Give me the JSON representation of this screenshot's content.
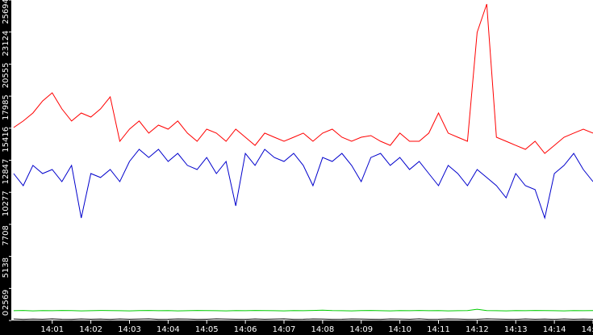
{
  "chart_data": {
    "type": "line",
    "x": [
      0,
      0.25,
      0.5,
      0.75,
      1,
      1.25,
      1.5,
      1.75,
      2,
      2.25,
      2.5,
      2.75,
      3,
      3.25,
      3.5,
      3.75,
      4,
      4.25,
      4.5,
      4.75,
      5,
      5.25,
      5.5,
      5.75,
      6,
      6.25,
      6.5,
      6.75,
      7,
      7.25,
      7.5,
      7.75,
      8,
      8.25,
      8.5,
      8.75,
      9,
      9.25,
      9.5,
      9.75,
      10,
      10.25,
      10.5,
      10.75,
      11,
      11.25,
      11.5,
      11.75,
      12,
      12.25,
      12.5,
      12.75,
      13,
      13.25,
      13.5,
      13.75,
      14,
      14.25,
      14.5,
      14.75,
      15
    ],
    "series": [
      {
        "color": "#ff0000",
        "values": [
          15470,
          15990,
          16630,
          17600,
          18250,
          16960,
          15990,
          16630,
          16310,
          16960,
          17930,
          14370,
          15340,
          15990,
          15020,
          15660,
          15340,
          15990,
          15020,
          14370,
          15340,
          15020,
          14370,
          15340,
          14690,
          14040,
          15020,
          14690,
          14370,
          14690,
          15020,
          14370,
          15020,
          15340,
          14690,
          14370,
          14690,
          14820,
          14370,
          14040,
          15020,
          14370,
          14370,
          15020,
          16630,
          15020,
          14690,
          14370,
          23100,
          25370,
          14690,
          14370,
          14040,
          13720,
          14370,
          13400,
          14040,
          14690,
          15020,
          15340,
          15020
        ]
      },
      {
        "color": "#0000cc",
        "values": [
          11780,
          10810,
          12430,
          11780,
          12100,
          11130,
          12430,
          8220,
          11780,
          11460,
          12100,
          11130,
          12750,
          13720,
          13070,
          13720,
          12750,
          13400,
          12430,
          12100,
          13070,
          11780,
          12750,
          9190,
          13400,
          12430,
          13720,
          13070,
          12750,
          13400,
          12430,
          10810,
          13070,
          12750,
          13400,
          12430,
          11130,
          13070,
          13400,
          12430,
          13070,
          12100,
          12750,
          11780,
          10810,
          12430,
          11780,
          10810,
          12100,
          11460,
          10810,
          9840,
          11780,
          10810,
          10490,
          8220,
          11780,
          12430,
          13400,
          12100,
          11130
        ]
      },
      {
        "color": "#00cc00",
        "values": [
          780,
          800,
          770,
          790,
          780,
          800,
          790,
          770,
          780,
          800,
          790,
          780,
          770,
          790,
          800,
          780,
          790,
          770,
          780,
          800,
          790,
          780,
          770,
          790,
          780,
          800,
          790,
          780,
          770,
          790,
          780,
          800,
          830,
          790,
          780,
          770,
          790,
          800,
          780,
          770,
          790,
          780,
          800,
          780,
          790,
          770,
          780,
          790,
          900,
          790,
          780,
          770,
          790,
          780,
          800,
          790,
          780,
          770,
          790,
          780,
          790
        ]
      },
      {
        "color": "#000000",
        "values": [
          120,
          90,
          110,
          100,
          130,
          100,
          90,
          120,
          100,
          110,
          90,
          120,
          100,
          110,
          130,
          90,
          100,
          120,
          110,
          90,
          100,
          130,
          110,
          100,
          90,
          120,
          100,
          110,
          130,
          90,
          100,
          120,
          110,
          90,
          100,
          120,
          110,
          100,
          90,
          120,
          110,
          100,
          130,
          90,
          100,
          120,
          110,
          90,
          100,
          130,
          110,
          100,
          90,
          120,
          100,
          110,
          90,
          120,
          100,
          110,
          100
        ]
      }
    ],
    "xlim": [
      -0.06,
      15.0
    ],
    "xticks": [
      {
        "value": 1,
        "label": "14:01"
      },
      {
        "value": 2,
        "label": "14:02"
      },
      {
        "value": 3,
        "label": "14:03"
      },
      {
        "value": 4,
        "label": "14:04"
      },
      {
        "value": 5,
        "label": "14:05"
      },
      {
        "value": 6,
        "label": "14:06"
      },
      {
        "value": 7,
        "label": "14:07"
      },
      {
        "value": 8,
        "label": "14:08"
      },
      {
        "value": 9,
        "label": "14:09"
      },
      {
        "value": 10,
        "label": "14:10"
      },
      {
        "value": 11,
        "label": "14:11"
      },
      {
        "value": 12,
        "label": "14:12"
      },
      {
        "value": 13,
        "label": "14:13"
      },
      {
        "value": 14,
        "label": "14:14"
      },
      {
        "value": 15,
        "label": "14:15"
      }
    ],
    "ylim": [
      0,
      25694
    ],
    "yticks": [
      0,
      2569,
      5138,
      7708,
      10277,
      12847,
      15416,
      17985,
      20555,
      23124,
      25694
    ]
  }
}
